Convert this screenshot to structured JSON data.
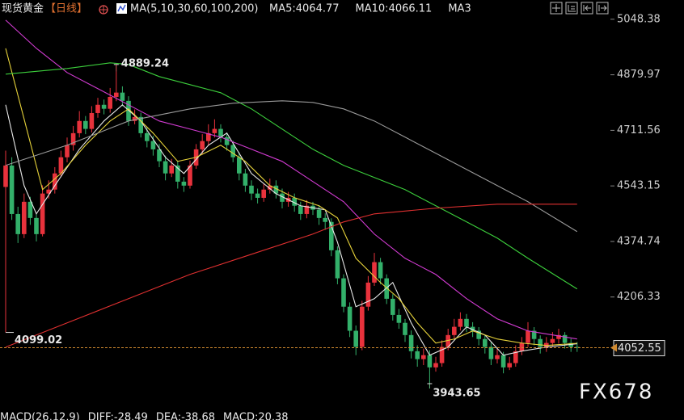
{
  "chart_data": {
    "type": "candlestick",
    "title": "现货黄金",
    "period": "【日线】",
    "ma_spec": "MA(5,10,30,60,100,200)",
    "ma_legend": [
      {
        "text": "MA5:4064.77",
        "color": "#e8e8e8"
      },
      {
        "text": "MA10:4066.11",
        "color": "#e6d23a"
      },
      {
        "text": "MA3",
        "color": "#d23bd2"
      }
    ],
    "footer": [
      {
        "text": "MACD(26,12,9)",
        "color": "#e8e8e8"
      },
      {
        "text": "DIFF:-28.49",
        "color": "#e8e8e8"
      },
      {
        "text": "DEA:-38.68",
        "color": "#e6d23a"
      },
      {
        "text": "MACD:20.38",
        "color": "#d23bd2"
      }
    ],
    "watermark": "FX678",
    "up_color": "#e8323c",
    "down_color": "#33b06a",
    "ylim": [
      3880,
      5070
    ],
    "yticks": [
      5048.38,
      4879.97,
      4711.56,
      4543.15,
      4374.74,
      4206.33
    ],
    "open": [
      4540,
      4605,
      4458,
      4397,
      4495,
      4446,
      4397,
      4520,
      4532,
      4581,
      4630,
      4667,
      4703,
      4740,
      4716,
      4764,
      4789,
      4777,
      4813,
      4826,
      4801,
      4740,
      4752,
      4703,
      4679,
      4654,
      4618,
      4581,
      4605,
      4556,
      4544,
      4605,
      4654,
      4679,
      4703,
      4716,
      4691,
      4667,
      4630,
      4581,
      4544,
      4520,
      4507,
      4532,
      4544,
      4520,
      4495,
      4507,
      4483,
      4458,
      4483,
      4471,
      4446,
      4434,
      4348,
      4263,
      4177,
      4104,
      4055,
      4177,
      4250,
      4312,
      4263,
      4201,
      4152,
      4128,
      4091,
      4042,
      4018,
      4030,
      3993,
      4006,
      4055,
      4091,
      4116,
      4140,
      4116,
      4104,
      4079,
      4055,
      4018,
      4030,
      3993,
      4006,
      4042,
      4067,
      4104,
      4079,
      4055,
      4067,
      4079,
      4091,
      4067,
      4055
    ],
    "high": [
      4650,
      4630,
      4480,
      4520,
      4510,
      4460,
      4545,
      4560,
      4600,
      4650,
      4690,
      4725,
      4770,
      4755,
      4785,
      4810,
      4805,
      4840,
      4889.24,
      4845,
      4815,
      4775,
      4765,
      4720,
      4695,
      4670,
      4635,
      4625,
      4620,
      4570,
      4620,
      4670,
      4700,
      4730,
      4745,
      4730,
      4705,
      4680,
      4645,
      4595,
      4560,
      4535,
      4550,
      4565,
      4560,
      4535,
      4525,
      4520,
      4495,
      4500,
      4495,
      4485,
      4460,
      4445,
      4360,
      4275,
      4190,
      4120,
      4195,
      4270,
      4340,
      4325,
      4275,
      4215,
      4170,
      4140,
      4105,
      4060,
      4050,
      4045,
      4025,
      4075,
      4110,
      4140,
      4160,
      4155,
      4130,
      4115,
      4090,
      4070,
      4050,
      4040,
      4025,
      4060,
      4085,
      4130,
      4115,
      4090,
      4085,
      4100,
      4110,
      4100,
      4080,
      4070
    ],
    "low": [
      4099.02,
      4440,
      4370,
      4385,
      4425,
      4375,
      4390,
      4505,
      4520,
      4570,
      4615,
      4650,
      4690,
      4700,
      4705,
      4750,
      4760,
      4765,
      4800,
      4785,
      4725,
      4730,
      4690,
      4660,
      4635,
      4600,
      4560,
      4570,
      4535,
      4525,
      4535,
      4595,
      4640,
      4665,
      4690,
      4675,
      4650,
      4615,
      4560,
      4525,
      4500,
      4490,
      4495,
      4520,
      4505,
      4475,
      4480,
      4465,
      4440,
      4445,
      4455,
      4425,
      4410,
      4330,
      4245,
      4160,
      4085,
      4030,
      4045,
      4165,
      4240,
      4245,
      4185,
      4135,
      4110,
      4070,
      4020,
      3995,
      4000,
      3943.65,
      3980,
      3995,
      4045,
      4080,
      4105,
      4100,
      4085,
      4060,
      4035,
      4000,
      4005,
      3975,
      3985,
      3995,
      4030,
      4055,
      4060,
      4035,
      4040,
      4055,
      4065,
      4050,
      4040,
      4040
    ],
    "close": [
      4605,
      4458,
      4397,
      4495,
      4446,
      4397,
      4520,
      4532,
      4581,
      4630,
      4667,
      4703,
      4740,
      4716,
      4764,
      4789,
      4777,
      4813,
      4826,
      4801,
      4740,
      4752,
      4703,
      4679,
      4654,
      4618,
      4581,
      4605,
      4556,
      4544,
      4605,
      4654,
      4679,
      4703,
      4716,
      4691,
      4667,
      4630,
      4581,
      4544,
      4520,
      4507,
      4532,
      4544,
      4520,
      4495,
      4507,
      4483,
      4458,
      4483,
      4471,
      4446,
      4434,
      4348,
      4263,
      4177,
      4104,
      4055,
      4177,
      4250,
      4312,
      4263,
      4201,
      4152,
      4128,
      4091,
      4042,
      4018,
      4030,
      3993,
      4006,
      4055,
      4091,
      4116,
      4140,
      4116,
      4104,
      4079,
      4055,
      4018,
      4030,
      3993,
      4006,
      4042,
      4067,
      4104,
      4079,
      4055,
      4067,
      4079,
      4091,
      4067,
      4055,
      4052.55
    ],
    "series": [
      {
        "color": "#e8e8e8",
        "x": [
          0,
          3,
          5,
          8,
          12,
          16,
          19,
          22,
          26,
          29,
          33,
          36,
          40,
          44,
          48,
          52,
          54,
          57,
          60,
          63,
          66,
          69,
          72,
          75,
          78,
          81,
          84,
          88,
          93
        ],
        "values": [
          4788.9,
          4544.1,
          4458.4,
          4544.1,
          4654.3,
          4739.9,
          4788.9,
          4739.9,
          4629.8,
          4580.8,
          4666.5,
          4703.2,
          4580.8,
          4519.6,
          4482.9,
          4470.7,
          4372.7,
          4176.9,
          4201.4,
          4250.3,
          4127.9,
          4030.0,
          4054.5,
          4115.7,
          4091.2,
          4030.0,
          4042.3,
          4054.5,
          4064.77
        ]
      },
      {
        "color": "#e6d23a",
        "x": [
          0,
          6,
          9,
          13,
          17,
          20,
          24,
          28,
          31,
          35,
          39,
          43,
          47,
          51,
          54,
          57,
          61,
          64,
          67,
          70,
          73,
          76,
          80,
          84,
          88,
          93
        ],
        "values": [
          4960.2,
          4531.9,
          4580.8,
          4666.5,
          4739.9,
          4776.6,
          4703.2,
          4617.5,
          4629.8,
          4666.5,
          4617.5,
          4544.1,
          4507.4,
          4482.9,
          4446.2,
          4323.8,
          4250.3,
          4201.4,
          4127.9,
          4066.7,
          4079.0,
          4103.5,
          4079.0,
          4066.7,
          4059.4,
          4066.11
        ]
      },
      {
        "color": "#d23bd2",
        "x": [
          0,
          5,
          10,
          15,
          20,
          25,
          30,
          35,
          40,
          45,
          50,
          55,
          60,
          65,
          70,
          75,
          80,
          85,
          93
        ],
        "values": [
          5045.9,
          4960.2,
          4886.8,
          4838.1,
          4788.9,
          4739.9,
          4715.5,
          4691.0,
          4654.3,
          4617.5,
          4556.3,
          4495.1,
          4397.2,
          4323.8,
          4274.8,
          4201.4,
          4140.2,
          4103.5,
          4079.0
        ]
      },
      {
        "color": "#3ccf3c",
        "x": [
          0,
          10,
          17,
          20,
          25,
          30,
          35,
          40,
          45,
          50,
          55,
          60,
          65,
          70,
          75,
          80,
          85,
          93
        ],
        "values": [
          4881.9,
          4899.0,
          4916.2,
          4911.3,
          4874.6,
          4850.1,
          4825.6,
          4776.6,
          4715.5,
          4654.3,
          4605.3,
          4568.6,
          4531.9,
          4482.9,
          4434.2,
          4385.0,
          4323.8,
          4230.7
        ]
      },
      {
        "color": "#9a9a9a",
        "x": [
          0,
          10,
          20,
          30,
          37,
          45,
          50,
          55,
          60,
          65,
          70,
          75,
          80,
          85,
          93
        ],
        "values": [
          4605.3,
          4666.5,
          4739.9,
          4776.6,
          4793.8,
          4801.1,
          4796.2,
          4776.6,
          4739.9,
          4691.0,
          4642.0,
          4593.1,
          4544.1,
          4495.1,
          4404.6
        ]
      },
      {
        "color": "#e03030",
        "x": [
          0,
          10,
          20,
          30,
          40,
          50,
          55,
          60,
          70,
          80,
          93
        ],
        "values": [
          4054.5,
          4127.9,
          4201.4,
          4274.8,
          4335.9,
          4397.2,
          4433.9,
          4458.4,
          4475.6,
          4487.8,
          4487.8
        ]
      }
    ],
    "annotations": [
      {
        "x": 18,
        "value": 4889.24,
        "label": "4889.24",
        "color": "#e05a5a"
      },
      {
        "x": 0,
        "value": 4099.02,
        "label": "4099.02",
        "color": "#5fbf80"
      },
      {
        "x": 69,
        "value": 3943.65,
        "label": "3943.65",
        "color": "#5fbf80"
      }
    ],
    "last_price": {
      "value": 4052.55,
      "label": "4052.55",
      "color": "#d08a30"
    }
  }
}
